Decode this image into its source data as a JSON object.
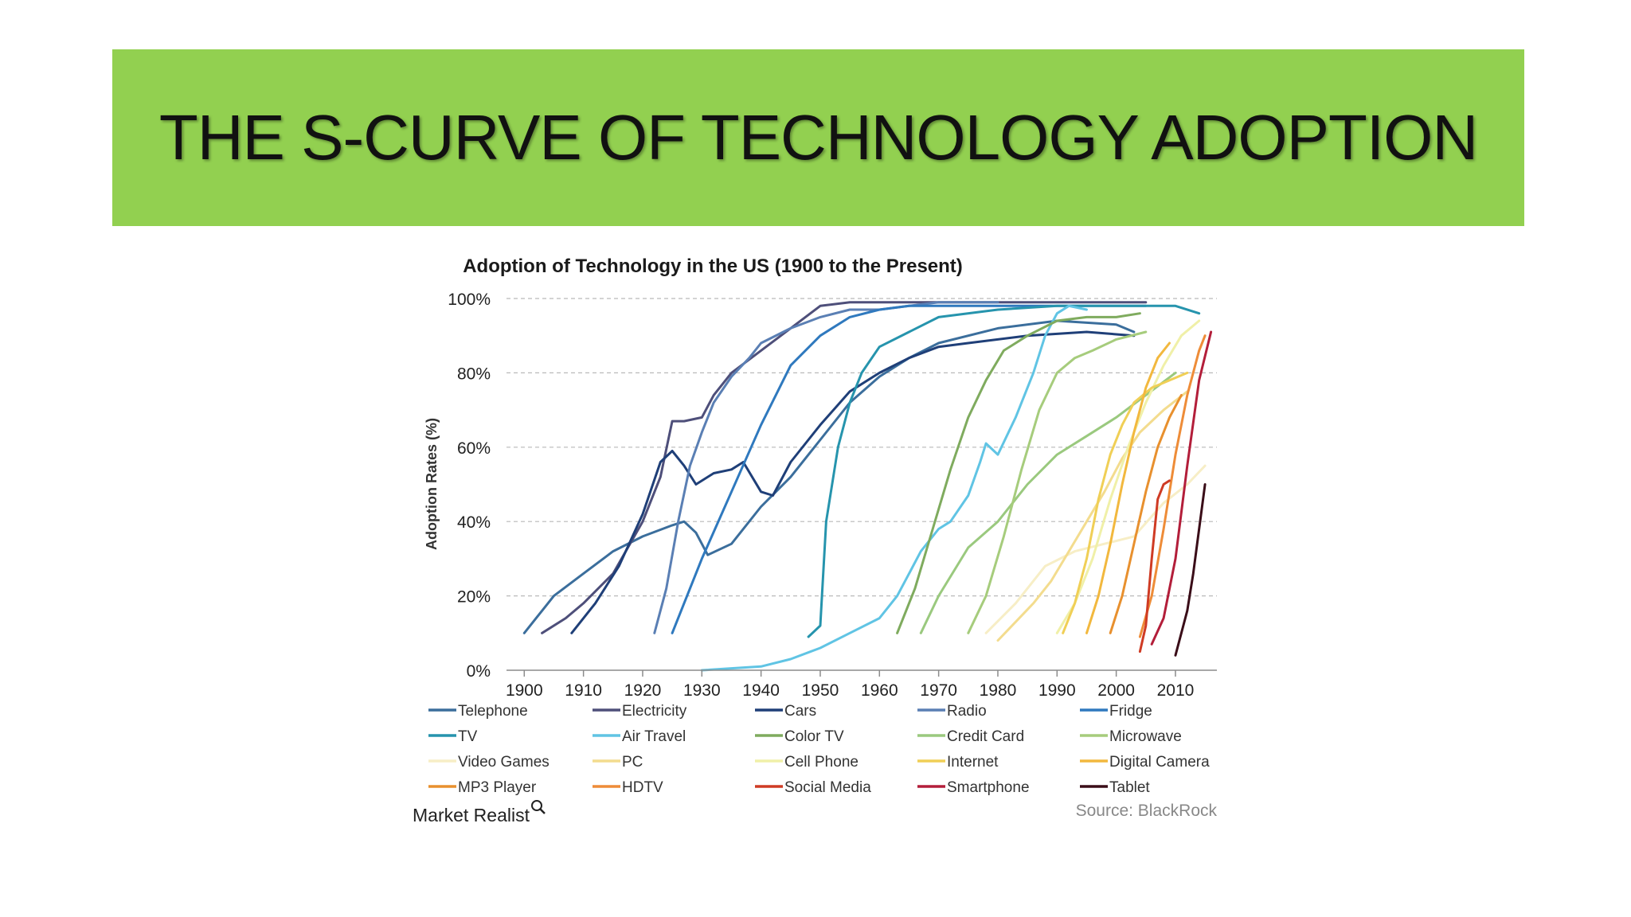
{
  "slide": {
    "title": "THE S-CURVE OF TECHNOLOGY ADOPTION",
    "banner_color": "#92d050"
  },
  "chart_data": {
    "type": "line",
    "title": "Adoption of Technology in the US (1900 to the Present)",
    "xlabel": "",
    "ylabel": "Adoption Rates (%)",
    "xlim": [
      1897,
      2017
    ],
    "ylim": [
      0,
      100
    ],
    "x_ticks": [
      "1900",
      "1910",
      "1920",
      "1930",
      "1940",
      "1950",
      "1960",
      "1970",
      "1980",
      "1990",
      "2000",
      "2010"
    ],
    "y_ticks": [
      "0%",
      "20%",
      "40%",
      "60%",
      "80%",
      "100%"
    ],
    "grid": "horizontal dashed",
    "legend_placement": "bottom",
    "source": "Source: BlackRock",
    "brand": "Market Realist",
    "series": [
      {
        "name": "Telephone",
        "color": "#3b6e9c",
        "points": [
          [
            1900,
            10
          ],
          [
            1902,
            14
          ],
          [
            1905,
            20
          ],
          [
            1910,
            26
          ],
          [
            1915,
            32
          ],
          [
            1920,
            36
          ],
          [
            1925,
            39
          ],
          [
            1927,
            40
          ],
          [
            1929,
            37
          ],
          [
            1931,
            31
          ],
          [
            1935,
            34
          ],
          [
            1940,
            44
          ],
          [
            1945,
            52
          ],
          [
            1950,
            62
          ],
          [
            1955,
            72
          ],
          [
            1960,
            79
          ],
          [
            1965,
            84
          ],
          [
            1970,
            88
          ],
          [
            1980,
            92
          ],
          [
            1990,
            94
          ],
          [
            2000,
            93
          ],
          [
            2003,
            91
          ]
        ]
      },
      {
        "name": "Electricity",
        "color": "#4e4f7a",
        "points": [
          [
            1903,
            10
          ],
          [
            1907,
            14
          ],
          [
            1910,
            18
          ],
          [
            1915,
            26
          ],
          [
            1920,
            40
          ],
          [
            1923,
            52
          ],
          [
            1925,
            67
          ],
          [
            1927,
            67
          ],
          [
            1930,
            68
          ],
          [
            1932,
            74
          ],
          [
            1935,
            80
          ],
          [
            1940,
            86
          ],
          [
            1945,
            92
          ],
          [
            1950,
            98
          ],
          [
            1955,
            99
          ],
          [
            2005,
            99
          ]
        ]
      },
      {
        "name": "Cars",
        "color": "#1f3f78",
        "points": [
          [
            1908,
            10
          ],
          [
            1912,
            18
          ],
          [
            1916,
            28
          ],
          [
            1920,
            42
          ],
          [
            1923,
            56
          ],
          [
            1925,
            59
          ],
          [
            1927,
            55
          ],
          [
            1929,
            50
          ],
          [
            1932,
            53
          ],
          [
            1935,
            54
          ],
          [
            1937,
            56
          ],
          [
            1940,
            48
          ],
          [
            1942,
            47
          ],
          [
            1945,
            56
          ],
          [
            1950,
            66
          ],
          [
            1955,
            75
          ],
          [
            1960,
            80
          ],
          [
            1965,
            84
          ],
          [
            1970,
            87
          ],
          [
            1975,
            88
          ],
          [
            1985,
            90
          ],
          [
            1995,
            91
          ],
          [
            2003,
            90
          ]
        ]
      },
      {
        "name": "Radio",
        "color": "#5a7fb4",
        "points": [
          [
            1922,
            10
          ],
          [
            1924,
            22
          ],
          [
            1926,
            40
          ],
          [
            1928,
            55
          ],
          [
            1930,
            64
          ],
          [
            1932,
            72
          ],
          [
            1935,
            79
          ],
          [
            1938,
            84
          ],
          [
            1940,
            88
          ],
          [
            1945,
            92
          ],
          [
            1950,
            95
          ],
          [
            1955,
            97
          ],
          [
            1960,
            97
          ],
          [
            1965,
            98
          ],
          [
            1970,
            99
          ],
          [
            1980,
            99
          ]
        ]
      },
      {
        "name": "Fridge",
        "color": "#2f79be",
        "points": [
          [
            1925,
            10
          ],
          [
            1930,
            30
          ],
          [
            1935,
            48
          ],
          [
            1940,
            66
          ],
          [
            1945,
            82
          ],
          [
            1950,
            90
          ],
          [
            1955,
            95
          ],
          [
            1960,
            97
          ],
          [
            1965,
            98
          ],
          [
            2005,
            98
          ]
        ]
      },
      {
        "name": "TV",
        "color": "#2694ad",
        "points": [
          [
            1948,
            9
          ],
          [
            1950,
            12
          ],
          [
            1951,
            40
          ],
          [
            1953,
            60
          ],
          [
            1955,
            72
          ],
          [
            1957,
            80
          ],
          [
            1960,
            87
          ],
          [
            1965,
            91
          ],
          [
            1970,
            95
          ],
          [
            1980,
            97
          ],
          [
            1990,
            98
          ],
          [
            2010,
            98
          ],
          [
            2014,
            96
          ]
        ]
      },
      {
        "name": "Air Travel",
        "color": "#60c4e4",
        "points": [
          [
            1930,
            0
          ],
          [
            1940,
            1
          ],
          [
            1945,
            3
          ],
          [
            1950,
            6
          ],
          [
            1955,
            10
          ],
          [
            1960,
            14
          ],
          [
            1963,
            20
          ],
          [
            1965,
            26
          ],
          [
            1967,
            32
          ],
          [
            1970,
            38
          ],
          [
            1972,
            40
          ],
          [
            1975,
            47
          ],
          [
            1977,
            56
          ],
          [
            1978,
            61
          ],
          [
            1980,
            58
          ],
          [
            1983,
            68
          ],
          [
            1986,
            80
          ],
          [
            1988,
            90
          ],
          [
            1990,
            96
          ],
          [
            1992,
            98
          ],
          [
            1995,
            97
          ]
        ]
      },
      {
        "name": "Color TV",
        "color": "#7fab5e",
        "points": [
          [
            1963,
            10
          ],
          [
            1966,
            22
          ],
          [
            1969,
            38
          ],
          [
            1972,
            54
          ],
          [
            1975,
            68
          ],
          [
            1978,
            78
          ],
          [
            1981,
            86
          ],
          [
            1985,
            90
          ],
          [
            1990,
            94
          ],
          [
            1995,
            95
          ],
          [
            2000,
            95
          ],
          [
            2004,
            96
          ]
        ]
      },
      {
        "name": "Credit Card",
        "color": "#9ac97e",
        "points": [
          [
            1967,
            10
          ],
          [
            1970,
            20
          ],
          [
            1975,
            33
          ],
          [
            1980,
            40
          ],
          [
            1985,
            50
          ],
          [
            1990,
            58
          ],
          [
            1995,
            63
          ],
          [
            2000,
            68
          ],
          [
            2005,
            74
          ],
          [
            2010,
            80
          ]
        ]
      },
      {
        "name": "Microwave",
        "color": "#a6cc7c",
        "points": [
          [
            1975,
            10
          ],
          [
            1978,
            20
          ],
          [
            1981,
            36
          ],
          [
            1984,
            54
          ],
          [
            1987,
            70
          ],
          [
            1990,
            80
          ],
          [
            1993,
            84
          ],
          [
            1996,
            86
          ],
          [
            2000,
            89
          ],
          [
            2005,
            91
          ]
        ]
      },
      {
        "name": "Video Games",
        "color": "#f7eec6",
        "points": [
          [
            1978,
            10
          ],
          [
            1983,
            18
          ],
          [
            1988,
            28
          ],
          [
            1993,
            32
          ],
          [
            1998,
            34
          ],
          [
            2003,
            36
          ],
          [
            2008,
            45
          ],
          [
            2012,
            50
          ],
          [
            2015,
            55
          ]
        ]
      },
      {
        "name": "PC",
        "color": "#f3dc8e",
        "points": [
          [
            1980,
            8
          ],
          [
            1983,
            13
          ],
          [
            1986,
            18
          ],
          [
            1989,
            24
          ],
          [
            1992,
            32
          ],
          [
            1995,
            40
          ],
          [
            1998,
            48
          ],
          [
            2001,
            57
          ],
          [
            2004,
            64
          ],
          [
            2008,
            70
          ],
          [
            2012,
            75
          ]
        ]
      },
      {
        "name": "Cell Phone",
        "color": "#f0f0a8",
        "points": [
          [
            1990,
            10
          ],
          [
            1993,
            18
          ],
          [
            1996,
            30
          ],
          [
            1999,
            46
          ],
          [
            2002,
            60
          ],
          [
            2005,
            72
          ],
          [
            2008,
            82
          ],
          [
            2011,
            90
          ],
          [
            2014,
            94
          ]
        ]
      },
      {
        "name": "Internet",
        "color": "#f0cf56",
        "points": [
          [
            1991,
            10
          ],
          [
            1993,
            18
          ],
          [
            1995,
            30
          ],
          [
            1997,
            46
          ],
          [
            1999,
            58
          ],
          [
            2001,
            66
          ],
          [
            2003,
            72
          ],
          [
            2006,
            76
          ],
          [
            2009,
            78
          ],
          [
            2012,
            80
          ]
        ]
      },
      {
        "name": "Digital Camera",
        "color": "#f2b83e",
        "points": [
          [
            1995,
            10
          ],
          [
            1997,
            20
          ],
          [
            1999,
            34
          ],
          [
            2001,
            50
          ],
          [
            2003,
            64
          ],
          [
            2005,
            76
          ],
          [
            2007,
            84
          ],
          [
            2009,
            88
          ]
        ]
      },
      {
        "name": "MP3 Player",
        "color": "#e8902e",
        "points": [
          [
            1999,
            10
          ],
          [
            2001,
            20
          ],
          [
            2003,
            34
          ],
          [
            2005,
            48
          ],
          [
            2007,
            60
          ],
          [
            2009,
            68
          ],
          [
            2011,
            74
          ]
        ]
      },
      {
        "name": "HDTV",
        "color": "#ee8c38",
        "points": [
          [
            2004,
            9
          ],
          [
            2006,
            20
          ],
          [
            2008,
            38
          ],
          [
            2010,
            58
          ],
          [
            2012,
            74
          ],
          [
            2014,
            86
          ],
          [
            2015,
            90
          ]
        ]
      },
      {
        "name": "Social Media",
        "color": "#cf3b24",
        "points": [
          [
            2004,
            5
          ],
          [
            2005,
            12
          ],
          [
            2006,
            30
          ],
          [
            2007,
            46
          ],
          [
            2008,
            50
          ],
          [
            2009,
            51
          ]
        ]
      },
      {
        "name": "Smartphone",
        "color": "#b31e3a",
        "points": [
          [
            2006,
            7
          ],
          [
            2008,
            14
          ],
          [
            2010,
            30
          ],
          [
            2012,
            55
          ],
          [
            2014,
            78
          ],
          [
            2016,
            91
          ]
        ]
      },
      {
        "name": "Tablet",
        "color": "#3a0d18",
        "points": [
          [
            2010,
            4
          ],
          [
            2012,
            16
          ],
          [
            2013,
            26
          ],
          [
            2014,
            38
          ],
          [
            2015,
            50
          ]
        ]
      }
    ]
  }
}
